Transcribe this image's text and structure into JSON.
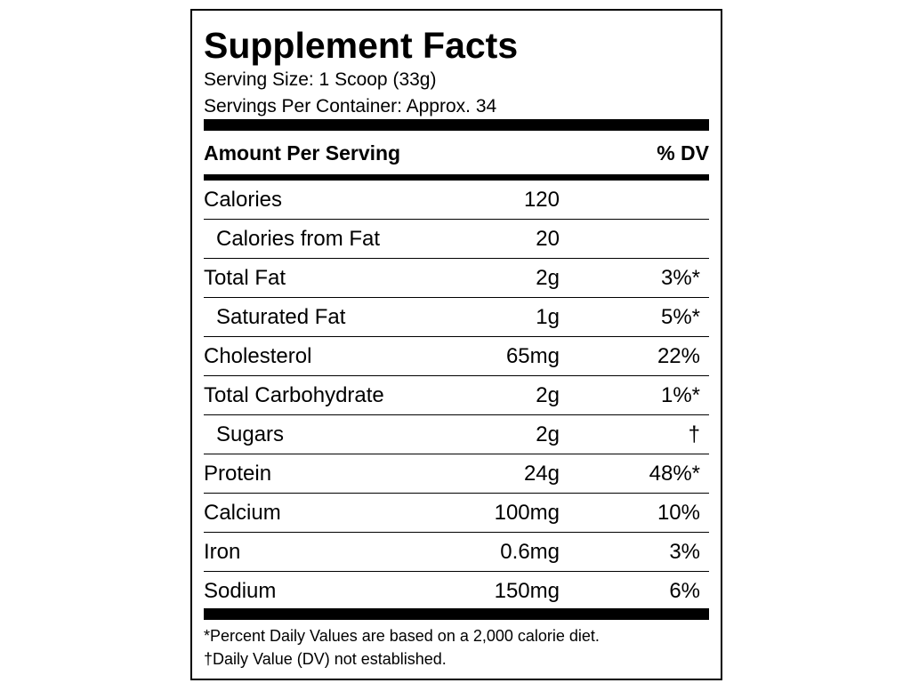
{
  "title": "Supplement Facts",
  "serving_size": "Serving Size: 1 Scoop (33g)",
  "servings_per_container": "Servings Per Container: Approx. 34",
  "header": {
    "left": "Amount Per Serving",
    "right": "% DV"
  },
  "nutrients": [
    {
      "name": "Calories",
      "amount": "120",
      "dv": ""
    },
    {
      "name": "Calories from Fat",
      "amount": "20",
      "dv": ""
    },
    {
      "name": "Total Fat",
      "amount": "2g",
      "dv": "3%*"
    },
    {
      "name": "Saturated Fat",
      "amount": "1g",
      "dv": "5%*"
    },
    {
      "name": "Cholesterol",
      "amount": "65mg",
      "dv": "22%"
    },
    {
      "name": "Total Carbohydrate",
      "amount": "2g",
      "dv": "1%*"
    },
    {
      "name": "Sugars",
      "amount": "2g",
      "dv": "†"
    },
    {
      "name": "Protein",
      "amount": "24g",
      "dv": "48%*"
    },
    {
      "name": "Calcium",
      "amount": "100mg",
      "dv": "10%"
    },
    {
      "name": "Iron",
      "amount": "0.6mg",
      "dv": "3%"
    },
    {
      "name": "Sodium",
      "amount": "150mg",
      "dv": "6%"
    }
  ],
  "footnotes": [
    "*Percent Daily Values are based on a 2,000 calorie diet.",
    "†Daily Value (DV) not established."
  ]
}
